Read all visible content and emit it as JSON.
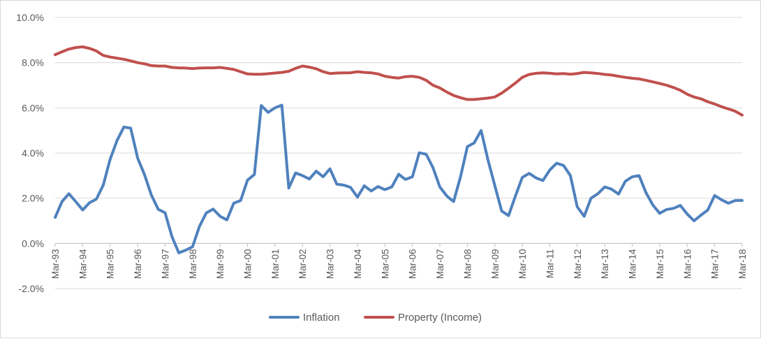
{
  "chart_data": {
    "type": "line",
    "title": "",
    "xlabel": "",
    "ylabel": "",
    "ylim": [
      -0.02,
      0.1
    ],
    "yticks": [
      "-2.0%",
      "0.0%",
      "2.0%",
      "4.0%",
      "6.0%",
      "8.0%",
      "10.0%"
    ],
    "xtick_labels": [
      "Mar-93",
      "Mar-94",
      "Mar-95",
      "Mar-96",
      "Mar-97",
      "Mar-98",
      "Mar-99",
      "Mar-00",
      "Mar-01",
      "Mar-02",
      "Mar-03",
      "Mar-04",
      "Mar-05",
      "Mar-06",
      "Mar-07",
      "Mar-08",
      "Mar-09",
      "Mar-10",
      "Mar-11",
      "Mar-12",
      "Mar-13",
      "Mar-14",
      "Mar-15",
      "Mar-16",
      "Mar-17",
      "Mar-18"
    ],
    "frequency": "quarterly",
    "grid": true,
    "legend_position": "bottom",
    "series": [
      {
        "name": "Inflation",
        "color": "#4f81bd",
        "values": [
          0.0115,
          0.0185,
          0.022,
          0.0185,
          0.0148,
          0.018,
          0.0196,
          0.0258,
          0.0372,
          0.0455,
          0.0515,
          0.051,
          0.0378,
          0.0305,
          0.0214,
          0.0151,
          0.0136,
          0.003,
          -0.0042,
          -0.003,
          -0.0015,
          0.0075,
          0.0135,
          0.0152,
          0.012,
          0.0104,
          0.0178,
          0.019,
          0.028,
          0.0305,
          0.061,
          0.058,
          0.06,
          0.0612,
          0.0245,
          0.0312,
          0.03,
          0.0285,
          0.032,
          0.0295,
          0.033,
          0.0262,
          0.0258,
          0.0248,
          0.0205,
          0.0255,
          0.0232,
          0.0252,
          0.0238,
          0.025,
          0.0306,
          0.0283,
          0.0295,
          0.0401,
          0.0395,
          0.0335,
          0.025,
          0.021,
          0.0185,
          0.0295,
          0.0428,
          0.0445,
          0.05,
          0.037,
          0.0255,
          0.0143,
          0.0123,
          0.021,
          0.0292,
          0.031,
          0.029,
          0.0278,
          0.0325,
          0.0355,
          0.0345,
          0.03,
          0.0162,
          0.012,
          0.02,
          0.022,
          0.025,
          0.024,
          0.0218,
          0.0275,
          0.0295,
          0.03,
          0.0225,
          0.017,
          0.0133,
          0.015,
          0.0155,
          0.0168,
          0.013,
          0.01,
          0.0125,
          0.0148,
          0.0212,
          0.0193,
          0.0178,
          0.019,
          0.019
        ]
      },
      {
        "name": "Property (Income)",
        "color": "#c0504d",
        "values": [
          0.0835,
          0.0848,
          0.086,
          0.0867,
          0.087,
          0.0863,
          0.0852,
          0.0832,
          0.0825,
          0.082,
          0.0815,
          0.0808,
          0.08,
          0.0795,
          0.0787,
          0.0785,
          0.0785,
          0.0779,
          0.0777,
          0.0776,
          0.0774,
          0.0776,
          0.0777,
          0.0777,
          0.0779,
          0.0775,
          0.077,
          0.076,
          0.075,
          0.0749,
          0.0749,
          0.0751,
          0.0754,
          0.0757,
          0.0762,
          0.0775,
          0.0785,
          0.078,
          0.0773,
          0.076,
          0.0752,
          0.0754,
          0.0755,
          0.0755,
          0.076,
          0.0757,
          0.0755,
          0.075,
          0.074,
          0.0735,
          0.0732,
          0.0738,
          0.074,
          0.0735,
          0.0722,
          0.07,
          0.0688,
          0.067,
          0.0655,
          0.0645,
          0.0637,
          0.0637,
          0.064,
          0.0643,
          0.0648,
          0.0665,
          0.0687,
          0.071,
          0.0735,
          0.0748,
          0.0753,
          0.0755,
          0.0753,
          0.075,
          0.0752,
          0.0749,
          0.0752,
          0.0757,
          0.0755,
          0.0752,
          0.0748,
          0.0745,
          0.074,
          0.0735,
          0.0731,
          0.0728,
          0.0722,
          0.0715,
          0.0708,
          0.07,
          0.069,
          0.0678,
          0.066,
          0.0648,
          0.064,
          0.0627,
          0.0617,
          0.0605,
          0.0595,
          0.0585,
          0.0568
        ]
      }
    ]
  }
}
